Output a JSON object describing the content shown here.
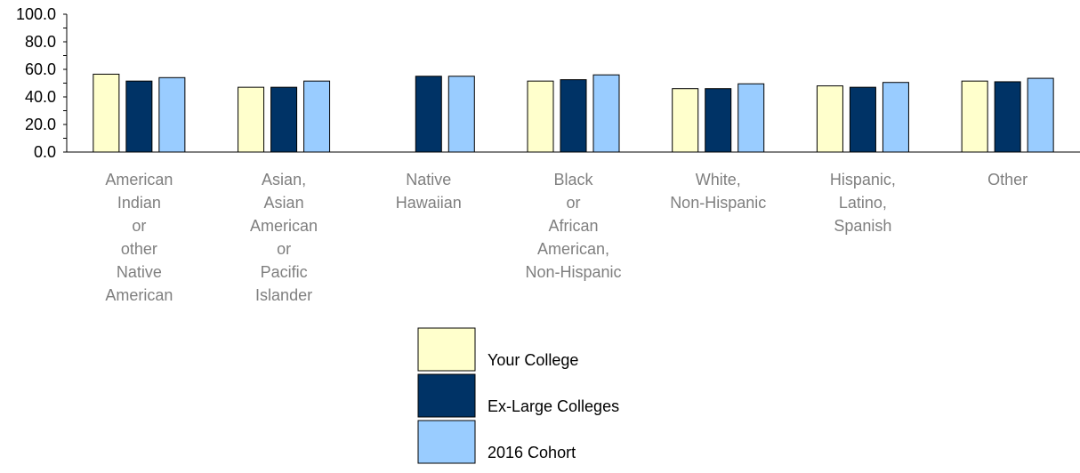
{
  "chart_data": {
    "type": "bar",
    "categories": [
      [
        "American",
        "Indian",
        "or",
        "other",
        "Native",
        "American"
      ],
      [
        "Asian,",
        "Asian",
        "American",
        "or",
        "Pacific",
        "Islander"
      ],
      [
        "Native",
        "Hawaiian"
      ],
      [
        "Black",
        "or",
        "African",
        "American,",
        "Non-Hispanic"
      ],
      [
        "White,",
        "Non-Hispanic"
      ],
      [
        "Hispanic,",
        "Latino,",
        "Spanish"
      ],
      [
        "Other"
      ]
    ],
    "series": [
      {
        "name": "Your College",
        "color": "#FFFFCC",
        "values": [
          56.5,
          47.0,
          null,
          51.5,
          46.0,
          48.0,
          51.5
        ]
      },
      {
        "name": "Ex-Large Colleges",
        "color": "#003366",
        "values": [
          51.5,
          47.0,
          55.0,
          52.5,
          46.0,
          47.0,
          51.0
        ]
      },
      {
        "name": "2016 Cohort",
        "color": "#99CCFF",
        "values": [
          54.0,
          51.5,
          55.0,
          56.0,
          49.5,
          50.5,
          53.5
        ]
      }
    ],
    "yticks": [
      "0.0",
      "20.0",
      "40.0",
      "60.0",
      "80.0",
      "100.0"
    ],
    "ylim": [
      0,
      100
    ],
    "title": "",
    "xlabel": "",
    "ylabel": "",
    "grid": false,
    "legend_position": "bottom-center"
  }
}
